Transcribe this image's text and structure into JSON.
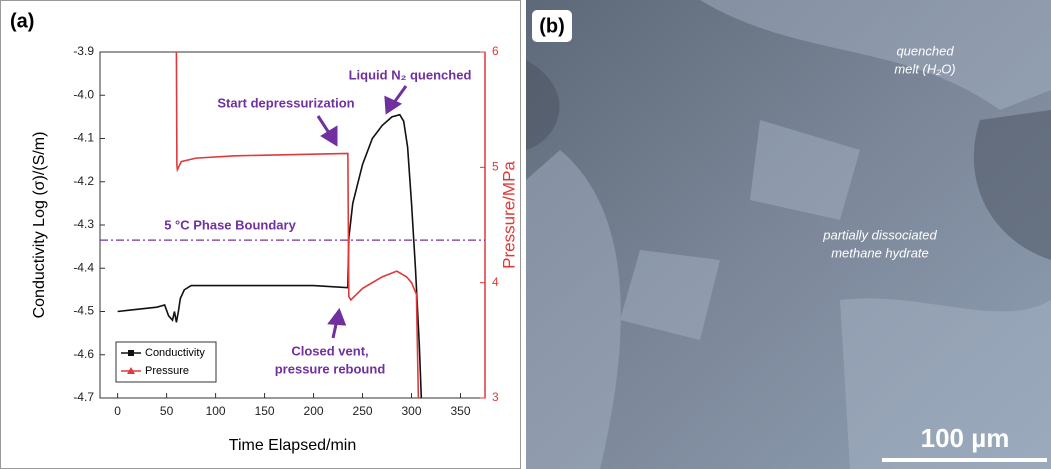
{
  "chart_data": {
    "type": "line",
    "label": "(a)",
    "x_label": "Time Elapsed/min",
    "y_label": "Conductivity Log (σ)/(S/m)",
    "y2_label": "Pressure/MPa",
    "xlim": [
      -18,
      375
    ],
    "xticks": [
      0,
      50,
      100,
      150,
      200,
      250,
      300,
      350
    ],
    "ylim": [
      -4.7,
      -3.9
    ],
    "yticks": [
      -3.9,
      {
        "value": -4,
        "label": "-4.0"
      },
      -4.1,
      -4.2,
      -4.3,
      -4.4,
      -4.5,
      -4.6,
      -4.7
    ],
    "y2lim": [
      3,
      6
    ],
    "y2ticks": [
      3,
      4,
      5,
      6
    ],
    "y2_color": "#e0393b",
    "legend": "lower left",
    "series": [
      {
        "name": "Conductivity",
        "color": "#111111",
        "marker": "square",
        "x": [
          0,
          20,
          40,
          48,
          52,
          56,
          58,
          60,
          62,
          64,
          68,
          75,
          100,
          150,
          200,
          235,
          236,
          240,
          250,
          260,
          270,
          280,
          288,
          292,
          296,
          300,
          304,
          308,
          310
        ],
        "values": [
          -4.5,
          -4.495,
          -4.49,
          -4.485,
          -4.51,
          -4.52,
          -4.5,
          -4.525,
          -4.5,
          -4.47,
          -4.45,
          -4.44,
          -4.44,
          -4.44,
          -4.44,
          -4.445,
          -4.33,
          -4.25,
          -4.16,
          -4.1,
          -4.07,
          -4.05,
          -4.045,
          -4.06,
          -4.12,
          -4.25,
          -4.4,
          -4.58,
          -4.7
        ]
      },
      {
        "name": "Pressure",
        "color": "#e0393b",
        "marker": "triangle",
        "axis": "y2",
        "x": [
          60,
          60.5,
          61,
          65,
          80,
          120,
          175,
          235,
          236,
          238,
          250,
          270,
          285,
          295,
          300,
          305,
          307
        ],
        "values": [
          6,
          5.02,
          4.98,
          5.05,
          5.08,
          5.1,
          5.11,
          5.12,
          3.88,
          3.85,
          3.95,
          4.05,
          4.1,
          4.05,
          4.0,
          3.9,
          3
        ]
      }
    ],
    "hline": {
      "value": -4.335,
      "label": "5 °C Phase Boundary",
      "color": "#7030a0"
    },
    "annotations": [
      {
        "text": [
          "Start depressurization"
        ]
      },
      {
        "text": [
          "Liquid N₂ quenched"
        ]
      },
      {
        "text": [
          "Closed vent,",
          "pressure rebound"
        ]
      }
    ]
  },
  "image_panel": {
    "label": "(b)",
    "annotations": [
      {
        "text": [
          "quenched",
          "melt (H₂O)"
        ]
      },
      {
        "text": [
          "partially dissociated",
          "methane hydrate"
        ]
      }
    ],
    "scale_bar": "100 µm"
  }
}
